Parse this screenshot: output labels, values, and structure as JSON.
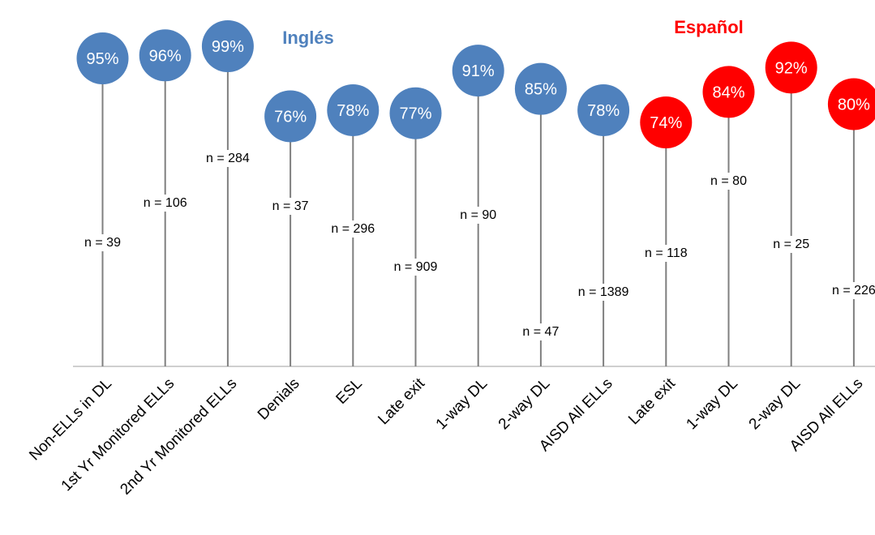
{
  "chart_data": {
    "type": "lollipop",
    "groups": [
      {
        "name": "Inglés",
        "color": "#4F81BD"
      },
      {
        "name": "Español",
        "color": "#FF0000"
      }
    ],
    "categories": [
      "Non-ELLs in DL",
      "1st Yr Monitored ELLs",
      "2nd Yr Monitored ELLs",
      "Denials",
      "ESL",
      "Late exit",
      "1-way DL",
      "2-way DL",
      "AISD All ELLs",
      "Late exit",
      "1-way DL",
      "2-way DL",
      "AISD All ELLs"
    ],
    "values": [
      95,
      96,
      99,
      76,
      78,
      77,
      91,
      85,
      78,
      74,
      84,
      92,
      80
    ],
    "value_labels": [
      "95%",
      "96%",
      "99%",
      "76%",
      "78%",
      "77%",
      "91%",
      "85%",
      "78%",
      "74%",
      "84%",
      "92%",
      "80%"
    ],
    "n_labels": [
      "n = 39",
      "n = 106",
      "n = 284",
      "n = 37",
      "n = 296",
      "n = 909",
      "n = 90",
      "n = 47",
      "n = 1389",
      "n = 118",
      "n = 80",
      "n = 25",
      "n = 226"
    ],
    "n_values": [
      39,
      106,
      284,
      37,
      296,
      909,
      90,
      47,
      1389,
      118,
      80,
      25,
      226
    ],
    "point_group": [
      "Inglés",
      "Inglés",
      "Inglés",
      "Inglés",
      "Inglés",
      "Inglés",
      "Inglés",
      "Inglés",
      "Inglés",
      "Español",
      "Español",
      "Español",
      "Español"
    ],
    "ylim": [
      50,
      100
    ],
    "grid": false,
    "legend": "group labels above chart"
  }
}
